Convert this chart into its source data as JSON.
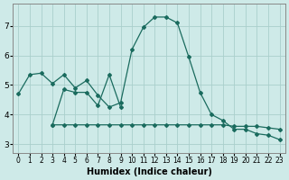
{
  "xlabel": "Humidex (Indice chaleur)",
  "xlim": [
    -0.5,
    23.5
  ],
  "ylim": [
    2.7,
    7.75
  ],
  "yticks": [
    3,
    4,
    5,
    6,
    7
  ],
  "xticks": [
    0,
    1,
    2,
    3,
    4,
    5,
    6,
    7,
    8,
    9,
    10,
    11,
    12,
    13,
    14,
    15,
    16,
    17,
    18,
    19,
    20,
    21,
    22,
    23
  ],
  "bg_color": "#ceeae8",
  "grid_color": "#aacfcc",
  "line_color": "#1a6b5e",
  "line1_x": [
    0,
    1,
    2,
    3,
    4,
    5,
    6,
    7,
    8,
    9,
    10,
    11,
    12,
    13,
    14,
    15,
    16,
    17,
    18,
    19,
    20,
    21,
    22,
    23
  ],
  "line1_y": [
    4.7,
    5.35,
    5.4,
    5.05,
    5.35,
    4.9,
    5.15,
    4.65,
    4.25,
    4.4,
    6.2,
    6.95,
    7.3,
    7.3,
    7.1,
    5.95,
    4.75,
    4.0,
    3.8,
    3.5,
    3.5,
    3.35,
    3.3,
    3.15
  ],
  "line2_x": [
    3,
    4,
    5,
    6,
    7,
    8,
    9
  ],
  "line2_y": [
    3.65,
    4.85,
    4.75,
    4.75,
    4.3,
    5.35,
    4.25
  ],
  "line3_x": [
    3,
    4,
    5,
    6,
    7,
    8,
    9,
    10,
    11,
    12,
    13,
    14,
    15,
    16,
    17,
    18,
    19,
    20,
    21,
    22,
    23
  ],
  "line3_y": [
    3.65,
    3.65,
    3.65,
    3.65,
    3.65,
    3.65,
    3.65,
    3.65,
    3.65,
    3.65,
    3.65,
    3.65,
    3.65,
    3.65,
    3.65,
    3.65,
    3.6,
    3.6,
    3.6,
    3.55,
    3.5
  ],
  "markersize": 2.0,
  "linewidth": 0.9
}
